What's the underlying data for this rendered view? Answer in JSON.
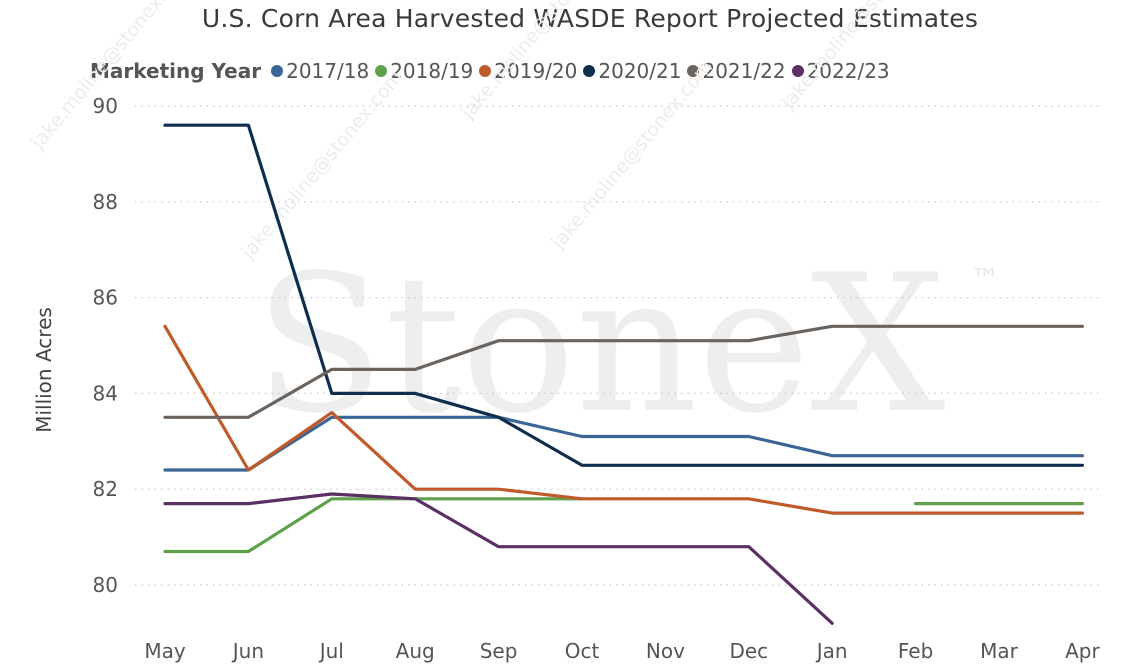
{
  "chart_data": {
    "type": "line",
    "title": "U.S. Corn Area Harvested WASDE Report Projected Estimates",
    "legend_title": "Marketing Year",
    "ylabel": "Million Acres",
    "xlabel": "",
    "categories": [
      "May",
      "Jun",
      "Jul",
      "Aug",
      "Sep",
      "Oct",
      "Nov",
      "Dec",
      "Jan",
      "Feb",
      "Mar",
      "Apr"
    ],
    "yticks": [
      80,
      82,
      84,
      86,
      88,
      90
    ],
    "ylim": [
      79,
      90.3
    ],
    "grid": "horizontal dotted",
    "legend_position": "top",
    "series": [
      {
        "name": "2017/18",
        "color": "#3a6695",
        "values": [
          82.4,
          82.4,
          83.5,
          83.5,
          83.5,
          83.1,
          83.1,
          83.1,
          82.7,
          82.7,
          82.7,
          82.7
        ]
      },
      {
        "name": "2018/19",
        "color": "#5fa04a",
        "values": [
          80.7,
          80.7,
          81.8,
          81.8,
          81.8,
          81.8,
          null,
          null,
          null,
          81.7,
          81.7,
          81.7
        ]
      },
      {
        "name": "2019/20",
        "color": "#c05a2a",
        "values": [
          85.4,
          82.4,
          83.6,
          82.0,
          82.0,
          81.8,
          81.8,
          81.8,
          81.5,
          81.5,
          81.5,
          81.5
        ]
      },
      {
        "name": "2020/21",
        "color": "#0f2e4e",
        "values": [
          89.6,
          89.6,
          84.0,
          84.0,
          83.5,
          82.5,
          82.5,
          82.5,
          82.5,
          82.5,
          82.5,
          82.5
        ]
      },
      {
        "name": "2021/22",
        "color": "#6b635d",
        "values": [
          83.5,
          83.5,
          84.5,
          84.5,
          85.1,
          85.1,
          85.1,
          85.1,
          85.4,
          85.4,
          85.4,
          85.4
        ]
      },
      {
        "name": "2022/23",
        "color": "#5c3064",
        "values": [
          81.7,
          81.7,
          81.9,
          81.8,
          80.8,
          80.8,
          80.8,
          80.8,
          79.2,
          null,
          null,
          null
        ]
      }
    ],
    "watermark": {
      "brand": "StoneX",
      "trademark": "™",
      "email": "jake.moline@stonex.com"
    }
  }
}
